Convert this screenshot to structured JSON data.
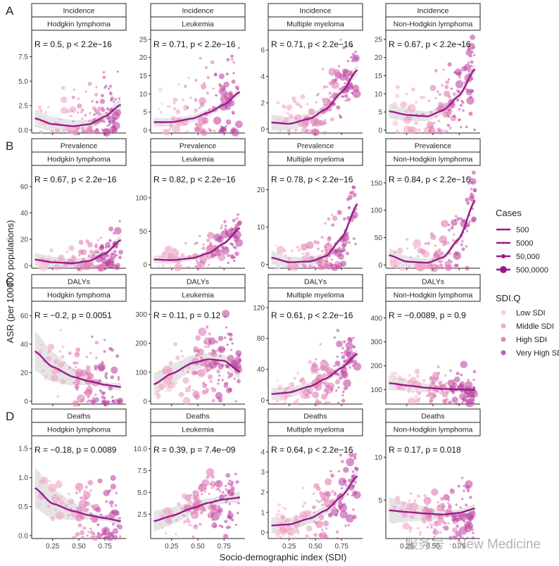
{
  "figure": {
    "y_axis_label": "ASR (per 100000 populations)",
    "x_axis_label": "Socio-demographic index (SDI)",
    "watermark": "服务号 · New Medicine"
  },
  "legend": {
    "cases_title": "Cases",
    "cases_items": [
      "500",
      "5000",
      "50,000",
      "500,0000"
    ],
    "sdi_title": "SDI.Q",
    "sdi_items": [
      "Low SDI",
      "Middle SDI",
      "High SDI",
      "Very High SDI"
    ]
  },
  "colors": {
    "curve": "#9b1a8a",
    "band": "#cfcfcf",
    "low_sdi": "#f7c6d8",
    "middle_sdi": "#efa3c6",
    "high_sdi": "#e07bb4",
    "very_high_sdi": "#c04aa5"
  },
  "chart_data": {
    "type": "scatter",
    "x_ticks": [
      0.25,
      0.5,
      0.75
    ],
    "x_tick_labels": [
      "0.25",
      "0.50",
      "0.75"
    ],
    "xlim": [
      0.05,
      0.95
    ],
    "rows": [
      {
        "letter": "A",
        "measure": "Incidence",
        "panels": [
          {
            "cancer": "Hodgkin lymphoma",
            "stat": "R = 0.5, p < 2.2e−16",
            "ylim": [
              -0.3,
              10.2
            ],
            "y_ticks": [
              0,
              2.5,
              5,
              7.5
            ],
            "y_tick_labels": [
              "0.0",
              "2.5",
              "5.0",
              "7.5"
            ],
            "curve": [
              [
                0.08,
                1.2
              ],
              [
                0.25,
                0.6
              ],
              [
                0.45,
                0.4
              ],
              [
                0.6,
                0.6
              ],
              [
                0.75,
                1.4
              ],
              [
                0.9,
                2.6
              ]
            ],
            "band": [
              0.9,
              0.45
            ],
            "spread": 1.8,
            "pmax": 9.2,
            "n": 130
          },
          {
            "cancer": "Leukemia",
            "stat": "R = 0.71, p < 2.2e−16",
            "ylim": [
              -0.8,
              27.5
            ],
            "y_ticks": [
              0,
              5,
              10,
              15,
              20,
              25
            ],
            "y_tick_labels": [
              "0",
              "5",
              "10",
              "15",
              "20",
              "25"
            ],
            "curve": [
              [
                0.08,
                2.2
              ],
              [
                0.25,
                2.2
              ],
              [
                0.45,
                3.2
              ],
              [
                0.6,
                4.8
              ],
              [
                0.75,
                7.0
              ],
              [
                0.9,
                10.5
              ]
            ],
            "band": [
              1.2,
              0.8
            ],
            "spread": 6.0,
            "pmax": 25.0,
            "n": 130
          },
          {
            "cancer": "Multiple myeloma",
            "stat": "R = 0.71, p < 2.2e−16",
            "ylim": [
              -0.3,
              7.5
            ],
            "y_ticks": [
              0,
              2,
              4,
              6
            ],
            "y_tick_labels": [
              "0",
              "2",
              "4",
              "6"
            ],
            "curve": [
              [
                0.08,
                0.5
              ],
              [
                0.25,
                0.4
              ],
              [
                0.45,
                0.8
              ],
              [
                0.6,
                1.5
              ],
              [
                0.75,
                2.8
              ],
              [
                0.9,
                4.5
              ]
            ],
            "band": [
              0.6,
              0.3
            ],
            "spread": 1.2,
            "pmax": 6.9,
            "n": 130
          },
          {
            "cancer": "Non-Hodgkin lymphoma",
            "stat": "R = 0.67, p < 2.2e−16",
            "ylim": [
              -0.8,
              27.5
            ],
            "y_ticks": [
              0,
              5,
              10,
              15,
              20,
              25
            ],
            "y_tick_labels": [
              "0",
              "5",
              "10",
              "15",
              "20",
              "25"
            ],
            "curve": [
              [
                0.08,
                5.2
              ],
              [
                0.25,
                4.2
              ],
              [
                0.45,
                3.8
              ],
              [
                0.6,
                5.5
              ],
              [
                0.75,
                9.5
              ],
              [
                0.9,
                16.8
              ]
            ],
            "band": [
              2.0,
              1.0
            ],
            "spread": 5.0,
            "pmax": 26.0,
            "n": 130
          }
        ]
      },
      {
        "letter": "B",
        "measure": "Prevalence",
        "panels": [
          {
            "cancer": "Hodgkin lymphoma",
            "stat": "R = 0.67, p < 2.2e−16",
            "ylim": [
              -2,
              76
            ],
            "y_ticks": [
              0,
              20,
              40,
              60
            ],
            "y_tick_labels": [
              "0",
              "20",
              "40",
              "60"
            ],
            "curve": [
              [
                0.08,
                4.5
              ],
              [
                0.25,
                2.5
              ],
              [
                0.45,
                1.8
              ],
              [
                0.6,
                3.5
              ],
              [
                0.75,
                9.0
              ],
              [
                0.9,
                19.5
              ]
            ],
            "band": [
              5.0,
              2.5
            ],
            "spread": 7.0,
            "pmax": 62.0,
            "n": 130
          },
          {
            "cancer": "Leukemia",
            "stat": "R = 0.82, p < 2.2e−16",
            "ylim": [
              -5,
              148
            ],
            "y_ticks": [
              0,
              50,
              100
            ],
            "y_tick_labels": [
              "0",
              "50",
              "100"
            ],
            "curve": [
              [
                0.08,
                8
              ],
              [
                0.25,
                7
              ],
              [
                0.45,
                10
              ],
              [
                0.6,
                17
              ],
              [
                0.75,
                32
              ],
              [
                0.9,
                55
              ]
            ],
            "band": [
              6,
              3
            ],
            "spread": 15.0,
            "pmax": 110.0,
            "n": 130
          },
          {
            "cancer": "Multiple myeloma",
            "stat": "R = 0.78, p < 2.2e−16",
            "ylim": [
              -1,
              26.5
            ],
            "y_ticks": [
              0,
              10,
              20
            ],
            "y_tick_labels": [
              "0",
              "10",
              "20"
            ],
            "curve": [
              [
                0.08,
                1.8
              ],
              [
                0.25,
                0.6
              ],
              [
                0.45,
                0.8
              ],
              [
                0.6,
                2.2
              ],
              [
                0.75,
                7.0
              ],
              [
                0.9,
                16.2
              ]
            ],
            "band": [
              1.8,
              0.8
            ],
            "spread": 4.0,
            "pmax": 24.0,
            "n": 130
          },
          {
            "cancer": "Non-Hodgkin lymphoma",
            "stat": "R = 0.84, p < 2.2e−16",
            "ylim": [
              -6,
              182
            ],
            "y_ticks": [
              0,
              50,
              100,
              150
            ],
            "y_tick_labels": [
              "0",
              "50",
              "100",
              "150"
            ],
            "curve": [
              [
                0.08,
                18
              ],
              [
                0.25,
                6
              ],
              [
                0.45,
                4
              ],
              [
                0.6,
                14
              ],
              [
                0.75,
                48
              ],
              [
                0.9,
                118
              ]
            ],
            "band": [
              12,
              5
            ],
            "spread": 28.0,
            "pmax": 170.0,
            "n": 130
          }
        ]
      },
      {
        "letter": "C",
        "measure": "DALYs",
        "panels": [
          {
            "cancer": "Hodgkin lymphoma",
            "stat": "R = −0.2, p = 0.0051",
            "ylim": [
              -2,
              70
            ],
            "y_ticks": [
              0,
              20,
              40,
              60
            ],
            "y_tick_labels": [
              "0",
              "20",
              "40",
              "60"
            ],
            "curve": [
              [
                0.08,
                35
              ],
              [
                0.25,
                24
              ],
              [
                0.45,
                17
              ],
              [
                0.6,
                14
              ],
              [
                0.75,
                11.5
              ],
              [
                0.9,
                10
              ]
            ],
            "band": [
              14,
              2
            ],
            "spread": 12.0,
            "pmax": 62.0,
            "n": 130
          },
          {
            "cancer": "Leukemia",
            "stat": "R = 0.11, p = 0.12",
            "ylim": [
              -10,
              345
            ],
            "y_ticks": [
              0,
              100,
              200,
              300
            ],
            "y_tick_labels": [
              "0",
              "100",
              "200",
              "300"
            ],
            "curve": [
              [
                0.08,
                58
              ],
              [
                0.25,
                95
              ],
              [
                0.45,
                132
              ],
              [
                0.6,
                145
              ],
              [
                0.75,
                140
              ],
              [
                0.9,
                102
              ]
            ],
            "band": [
              40,
              20
            ],
            "spread": 60.0,
            "pmax": 320.0,
            "n": 160
          },
          {
            "cancer": "Multiple myeloma",
            "stat": "R = 0.61, p < 2.2e−16",
            "ylim": [
              -5,
              128
            ],
            "y_ticks": [
              0,
              40,
              80,
              120
            ],
            "y_tick_labels": [
              "0",
              "40",
              "80",
              "120"
            ],
            "curve": [
              [
                0.08,
                8
              ],
              [
                0.25,
                10
              ],
              [
                0.45,
                18
              ],
              [
                0.6,
                28
              ],
              [
                0.75,
                42
              ],
              [
                0.9,
                60
              ]
            ],
            "band": [
              8,
              4
            ],
            "spread": 18.0,
            "pmax": 105.0,
            "n": 150
          },
          {
            "cancer": "Non-Hodgkin lymphoma",
            "stat": "R = −0.0089, p = 0.9",
            "ylim": [
              40,
              470
            ],
            "y_ticks": [
              100,
              200,
              300,
              400
            ],
            "y_tick_labels": [
              "100",
              "200",
              "300",
              "400"
            ],
            "curve": [
              [
                0.08,
                128
              ],
              [
                0.25,
                118
              ],
              [
                0.45,
                108
              ],
              [
                0.6,
                103
              ],
              [
                0.75,
                101
              ],
              [
                0.9,
                100
              ]
            ],
            "band": [
              30,
              10
            ],
            "spread": 35.0,
            "pmax": 420.0,
            "n": 150
          }
        ]
      },
      {
        "letter": "D",
        "measure": "Deaths",
        "panels": [
          {
            "cancer": "Hodgkin lymphoma",
            "stat": "R = −0.18, p = 0.0089",
            "ylim": [
              -0.05,
              1.72
            ],
            "y_ticks": [
              0,
              0.5,
              1.0,
              1.5
            ],
            "y_tick_labels": [
              "0.0",
              "0.5",
              "1.0",
              "1.5"
            ],
            "curve": [
              [
                0.08,
                0.82
              ],
              [
                0.25,
                0.55
              ],
              [
                0.45,
                0.42
              ],
              [
                0.6,
                0.35
              ],
              [
                0.75,
                0.3
              ],
              [
                0.9,
                0.25
              ]
            ],
            "band": [
              0.35,
              0.05
            ],
            "spread": 0.28,
            "pmax": 1.6,
            "n": 130
          },
          {
            "cancer": "Leukemia",
            "stat": "R = 0.39, p = 7.4e−09",
            "ylim": [
              -0.3,
              11.5
            ],
            "y_ticks": [
              2.5,
              5,
              7.5,
              10
            ],
            "y_tick_labels": [
              "2.5",
              "5.0",
              "7.5",
              "10.0"
            ],
            "curve": [
              [
                0.08,
                1.7
              ],
              [
                0.25,
                2.3
              ],
              [
                0.45,
                3.2
              ],
              [
                0.6,
                3.8
              ],
              [
                0.75,
                4.2
              ],
              [
                0.9,
                4.4
              ]
            ],
            "band": [
              1.2,
              0.5
            ],
            "spread": 1.5,
            "pmax": 9.8,
            "n": 150
          },
          {
            "cancer": "Multiple myeloma",
            "stat": "R = 0.64, p < 2.2e−16",
            "ylim": [
              -0.3,
              4.8
            ],
            "y_ticks": [
              0,
              1,
              2,
              3,
              4
            ],
            "y_tick_labels": [
              "0",
              "1",
              "2",
              "3",
              "4"
            ],
            "curve": [
              [
                0.08,
                0.35
              ],
              [
                0.25,
                0.4
              ],
              [
                0.45,
                0.7
              ],
              [
                0.6,
                1.1
              ],
              [
                0.75,
                1.8
              ],
              [
                0.9,
                2.8
              ]
            ],
            "band": [
              0.4,
              0.2
            ],
            "spread": 0.8,
            "pmax": 4.4,
            "n": 150
          },
          {
            "cancer": "Non-Hodgkin lymphoma",
            "stat": "R = 0.17, p = 0.018",
            "ylim": [
              0.5,
              12.5
            ],
            "y_ticks": [
              5,
              10
            ],
            "y_tick_labels": [
              "5",
              "10"
            ],
            "curve": [
              [
                0.08,
                3.8
              ],
              [
                0.25,
                3.6
              ],
              [
                0.45,
                3.4
              ],
              [
                0.6,
                3.3
              ],
              [
                0.75,
                3.5
              ],
              [
                0.9,
                4.0
              ]
            ],
            "band": [
              1.5,
              0.4
            ],
            "spread": 1.4,
            "pmax": 11.0,
            "n": 150
          }
        ]
      }
    ]
  }
}
